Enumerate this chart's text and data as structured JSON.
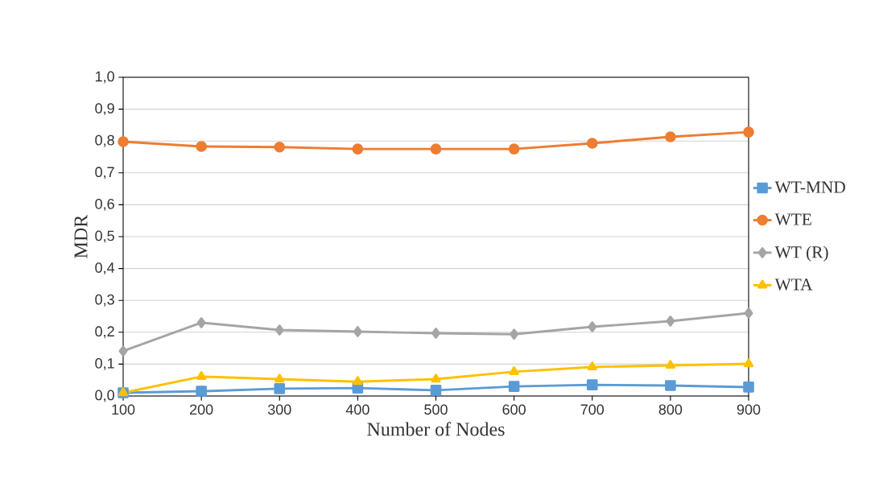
{
  "chart_data": {
    "type": "line",
    "xlabel": "Number of Nodes",
    "ylabel": "MDR",
    "x": [
      100,
      200,
      300,
      400,
      500,
      600,
      700,
      800,
      900
    ],
    "xlim": [
      100,
      900
    ],
    "xticks": [
      100,
      200,
      300,
      400,
      500,
      600,
      700,
      800,
      900
    ],
    "ylim": [
      0,
      1
    ],
    "yticks": [
      {
        "value": 0,
        "label": "0,0"
      },
      {
        "value": 0.1,
        "label": "0,1"
      },
      {
        "value": 0.2,
        "label": "0,2"
      },
      {
        "value": 0.3,
        "label": "0,3"
      },
      {
        "value": 0.4,
        "label": "0,4"
      },
      {
        "value": 0.5,
        "label": "0,5"
      },
      {
        "value": 0.6,
        "label": "0,6"
      },
      {
        "value": 0.7,
        "label": "0,7"
      },
      {
        "value": 0.8,
        "label": "0,8"
      },
      {
        "value": 0.9,
        "label": "0,9"
      },
      {
        "value": 1,
        "label": "1,0"
      }
    ],
    "grid": "y",
    "legend": "right",
    "line_style": "solid",
    "series": [
      {
        "name": "WT-MND",
        "color": "#5b9bd5",
        "marker": "square",
        "values": [
          0.01,
          0.015,
          0.023,
          0.025,
          0.018,
          0.03,
          0.035,
          0.033,
          0.028
        ]
      },
      {
        "name": "WTE",
        "color": "#ed7d31",
        "marker": "circle",
        "values": [
          0.798,
          0.783,
          0.781,
          0.775,
          0.775,
          0.775,
          0.793,
          0.813,
          0.828
        ]
      },
      {
        "name": "WT (R)",
        "color": "#a5a5a5",
        "marker": "diamond",
        "values": [
          0.141,
          0.23,
          0.207,
          0.202,
          0.197,
          0.194,
          0.217,
          0.235,
          0.26
        ]
      },
      {
        "name": "WTA",
        "color": "#ffc000",
        "marker": "triangle",
        "values": [
          0.01,
          0.061,
          0.053,
          0.045,
          0.053,
          0.076,
          0.091,
          0.096,
          0.101
        ]
      }
    ]
  }
}
